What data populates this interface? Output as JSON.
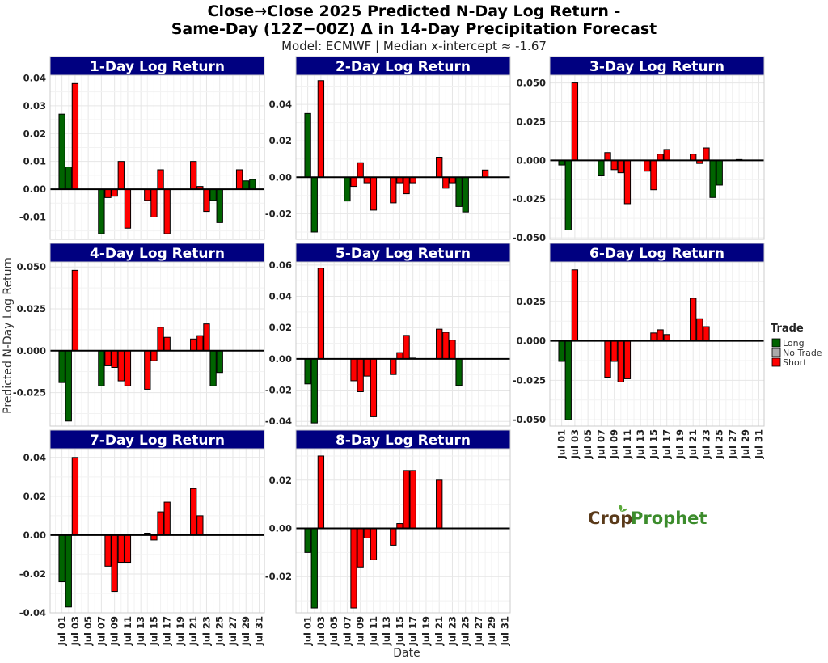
{
  "chart_data": {
    "type": "bar",
    "title_line1": "Close→Close 2025 Predicted N-Day Log Return -",
    "title_line2": "Same-Day (12Z−00Z) Δ in 14-Day Precipitation Forecast",
    "subtitle": "Model: ECMWF | Median x-intercept ≈ -1.67",
    "xlabel": "Date",
    "ylabel": "Predicted N-Day Log Return",
    "x_tick_labels": [
      "Jul 01",
      "Jul 03",
      "Jul 05",
      "Jul 07",
      "Jul 09",
      "Jul 11",
      "Jul 13",
      "Jul 15",
      "Jul 17",
      "Jul 19",
      "Jul 21",
      "Jul 23",
      "Jul 25",
      "Jul 27",
      "Jul 29",
      "Jul 31"
    ],
    "x_tick_days": [
      1,
      3,
      5,
      7,
      9,
      11,
      13,
      15,
      17,
      19,
      21,
      23,
      25,
      27,
      29,
      31
    ],
    "xlim_days": [
      -0.8,
      31.8
    ],
    "legend": {
      "title": "Trade",
      "placement": "right",
      "entries": [
        {
          "label": "Long",
          "color": "#006400"
        },
        {
          "label": "No Trade",
          "color": "#aaaaaa"
        },
        {
          "label": "Short",
          "color": "#ff0000"
        }
      ]
    },
    "colors": {
      "Long": "#006400",
      "No Trade": "#aaaaaa",
      "Short": "#ff0000",
      "strip": "#000080"
    },
    "logo": "CropProphet",
    "panels": [
      {
        "title": "1-Day Log Return",
        "ylim": [
          -0.018,
          0.041
        ],
        "yticks": [
          -0.01,
          0,
          0.01,
          0.02,
          0.03,
          0.04
        ],
        "ytick_labels": [
          "-0.01",
          "0.00",
          "0.01",
          "0.02",
          "0.03",
          "0.04"
        ],
        "bars": [
          [
            1,
            0.027,
            "Long"
          ],
          [
            2,
            0.008,
            "Long"
          ],
          [
            3,
            0.038,
            "Short"
          ],
          [
            7,
            -0.016,
            "Long"
          ],
          [
            8,
            -0.003,
            "Short"
          ],
          [
            9,
            -0.0025,
            "Short"
          ],
          [
            10,
            0.01,
            "Short"
          ],
          [
            11,
            -0.014,
            "Short"
          ],
          [
            14,
            -0.004,
            "Short"
          ],
          [
            15,
            -0.01,
            "Short"
          ],
          [
            16,
            0.007,
            "Short"
          ],
          [
            17,
            -0.016,
            "Short"
          ],
          [
            21,
            0.01,
            "Short"
          ],
          [
            22,
            0.001,
            "Short"
          ],
          [
            23,
            -0.008,
            "Short"
          ],
          [
            24,
            -0.004,
            "Long"
          ],
          [
            25,
            -0.012,
            "Long"
          ],
          [
            28,
            0.007,
            "Short"
          ],
          [
            29,
            0.003,
            "Long"
          ],
          [
            30,
            0.0035,
            "Long"
          ]
        ]
      },
      {
        "title": "2-Day Log Return",
        "ylim": [
          -0.034,
          0.056
        ],
        "yticks": [
          -0.02,
          0,
          0.02,
          0.04
        ],
        "ytick_labels": [
          "-0.02",
          "0.00",
          "0.02",
          "0.04"
        ],
        "bars": [
          [
            1,
            0.035,
            "Long"
          ],
          [
            2,
            -0.03,
            "Long"
          ],
          [
            3,
            0.053,
            "Short"
          ],
          [
            7,
            -0.013,
            "Long"
          ],
          [
            8,
            -0.005,
            "Short"
          ],
          [
            9,
            0.008,
            "Short"
          ],
          [
            10,
            -0.003,
            "Short"
          ],
          [
            11,
            -0.018,
            "Short"
          ],
          [
            14,
            -0.014,
            "Short"
          ],
          [
            15,
            -0.003,
            "Short"
          ],
          [
            16,
            -0.009,
            "Short"
          ],
          [
            17,
            -0.003,
            "Short"
          ],
          [
            21,
            0.011,
            "Short"
          ],
          [
            22,
            -0.006,
            "Short"
          ],
          [
            23,
            -0.003,
            "Short"
          ],
          [
            24,
            -0.016,
            "Long"
          ],
          [
            25,
            -0.019,
            "Long"
          ],
          [
            28,
            0.004,
            "Short"
          ]
        ]
      },
      {
        "title": "3-Day Log Return",
        "ylim": [
          -0.051,
          0.055
        ],
        "yticks": [
          -0.05,
          -0.025,
          0,
          0.025,
          0.05
        ],
        "ytick_labels": [
          "-0.050",
          "-0.025",
          "0.000",
          "0.025",
          "0.050"
        ],
        "bars": [
          [
            1,
            -0.003,
            "Long"
          ],
          [
            2,
            -0.045,
            "Long"
          ],
          [
            3,
            0.05,
            "Short"
          ],
          [
            7,
            -0.01,
            "Long"
          ],
          [
            8,
            0.005,
            "Short"
          ],
          [
            9,
            -0.006,
            "Short"
          ],
          [
            10,
            -0.008,
            "Short"
          ],
          [
            11,
            -0.028,
            "Short"
          ],
          [
            14,
            -0.007,
            "Short"
          ],
          [
            15,
            -0.019,
            "Short"
          ],
          [
            16,
            0.004,
            "Short"
          ],
          [
            17,
            0.007,
            "Short"
          ],
          [
            21,
            0.004,
            "Short"
          ],
          [
            22,
            -0.002,
            "Short"
          ],
          [
            23,
            0.008,
            "Short"
          ],
          [
            24,
            -0.024,
            "Long"
          ],
          [
            25,
            -0.016,
            "Long"
          ],
          [
            28,
            0.0005,
            "No Trade"
          ]
        ]
      },
      {
        "title": "4-Day Log Return",
        "ylim": [
          -0.045,
          0.053
        ],
        "yticks": [
          -0.025,
          0,
          0.025,
          0.05
        ],
        "ytick_labels": [
          "-0.025",
          "0.000",
          "0.025",
          "0.050"
        ],
        "bars": [
          [
            1,
            -0.019,
            "Long"
          ],
          [
            2,
            -0.042,
            "Long"
          ],
          [
            3,
            0.048,
            "Short"
          ],
          [
            7,
            -0.021,
            "Long"
          ],
          [
            8,
            -0.009,
            "Short"
          ],
          [
            9,
            -0.01,
            "Short"
          ],
          [
            10,
            -0.018,
            "Short"
          ],
          [
            11,
            -0.021,
            "Short"
          ],
          [
            14,
            -0.023,
            "Short"
          ],
          [
            15,
            -0.006,
            "Short"
          ],
          [
            16,
            0.014,
            "Short"
          ],
          [
            17,
            0.008,
            "Short"
          ],
          [
            21,
            0.007,
            "Short"
          ],
          [
            22,
            0.009,
            "Short"
          ],
          [
            23,
            0.016,
            "Short"
          ],
          [
            24,
            -0.021,
            "Long"
          ],
          [
            25,
            -0.013,
            "Long"
          ]
        ]
      },
      {
        "title": "5-Day Log Return",
        "ylim": [
          -0.043,
          0.062
        ],
        "yticks": [
          -0.04,
          -0.02,
          0,
          0.02,
          0.04,
          0.06
        ],
        "ytick_labels": [
          "-0.04",
          "-0.02",
          "0.00",
          "0.02",
          "0.04",
          "0.06"
        ],
        "bars": [
          [
            1,
            -0.016,
            "Long"
          ],
          [
            2,
            -0.041,
            "Long"
          ],
          [
            3,
            0.058,
            "Short"
          ],
          [
            8,
            -0.014,
            "Short"
          ],
          [
            9,
            -0.021,
            "Short"
          ],
          [
            10,
            -0.011,
            "Short"
          ],
          [
            11,
            -0.037,
            "Short"
          ],
          [
            14,
            -0.01,
            "Short"
          ],
          [
            15,
            0.004,
            "Short"
          ],
          [
            16,
            0.015,
            "Short"
          ],
          [
            17,
            0.0005,
            "Short"
          ],
          [
            21,
            0.019,
            "Short"
          ],
          [
            22,
            0.017,
            "Short"
          ],
          [
            23,
            0.012,
            "Short"
          ],
          [
            24,
            -0.017,
            "Long"
          ]
        ]
      },
      {
        "title": "6-Day Log Return",
        "ylim": [
          -0.054,
          0.05
        ],
        "yticks": [
          -0.05,
          -0.025,
          0,
          0.025
        ],
        "ytick_labels": [
          "-0.050",
          "-0.025",
          "0.000",
          "0.025"
        ],
        "bars": [
          [
            1,
            -0.013,
            "Long"
          ],
          [
            2,
            -0.05,
            "Long"
          ],
          [
            3,
            0.045,
            "Short"
          ],
          [
            8,
            -0.023,
            "Short"
          ],
          [
            9,
            -0.013,
            "Short"
          ],
          [
            10,
            -0.026,
            "Short"
          ],
          [
            11,
            -0.024,
            "Short"
          ],
          [
            15,
            0.005,
            "Short"
          ],
          [
            16,
            0.007,
            "Short"
          ],
          [
            17,
            0.004,
            "Short"
          ],
          [
            21,
            0.027,
            "Short"
          ],
          [
            22,
            0.014,
            "Short"
          ],
          [
            23,
            0.009,
            "Short"
          ]
        ]
      },
      {
        "title": "7-Day Log Return",
        "ylim": [
          -0.04,
          0.0445
        ],
        "yticks": [
          -0.04,
          -0.02,
          0,
          0.02,
          0.04
        ],
        "ytick_labels": [
          "-0.04",
          "-0.02",
          "0.00",
          "0.02",
          "0.04"
        ],
        "bars": [
          [
            1,
            -0.024,
            "Long"
          ],
          [
            2,
            -0.037,
            "Long"
          ],
          [
            3,
            0.04,
            "Short"
          ],
          [
            8,
            -0.016,
            "Short"
          ],
          [
            9,
            -0.029,
            "Short"
          ],
          [
            10,
            -0.014,
            "Short"
          ],
          [
            11,
            -0.014,
            "Short"
          ],
          [
            14,
            0.001,
            "Short"
          ],
          [
            15,
            -0.0025,
            "Short"
          ],
          [
            16,
            0.012,
            "Short"
          ],
          [
            17,
            0.017,
            "Short"
          ],
          [
            21,
            0.024,
            "Short"
          ],
          [
            22,
            0.01,
            "Short"
          ]
        ]
      },
      {
        "title": "8-Day Log Return",
        "ylim": [
          -0.035,
          0.033
        ],
        "yticks": [
          -0.02,
          0,
          0.02
        ],
        "ytick_labels": [
          "-0.02",
          "0.00",
          "0.02"
        ],
        "bars": [
          [
            1,
            -0.01,
            "Long"
          ],
          [
            2,
            -0.033,
            "Long"
          ],
          [
            3,
            0.03,
            "Short"
          ],
          [
            8,
            -0.033,
            "Short"
          ],
          [
            9,
            -0.016,
            "Short"
          ],
          [
            10,
            -0.004,
            "Short"
          ],
          [
            11,
            -0.013,
            "Short"
          ],
          [
            14,
            -0.007,
            "Short"
          ],
          [
            15,
            0.002,
            "Short"
          ],
          [
            16,
            0.024,
            "Short"
          ],
          [
            17,
            0.024,
            "Short"
          ],
          [
            21,
            0.02,
            "Short"
          ]
        ]
      }
    ]
  }
}
